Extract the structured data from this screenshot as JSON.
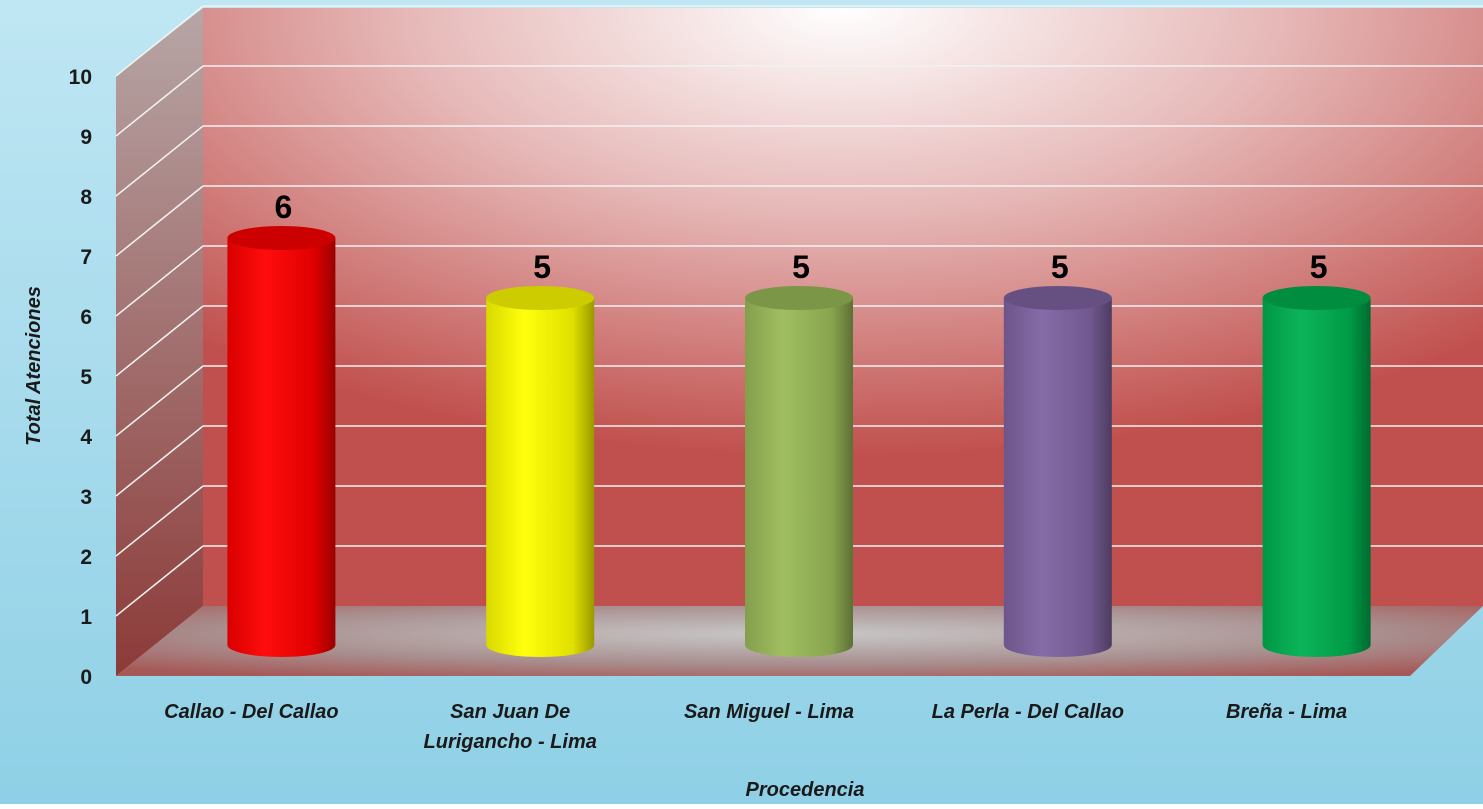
{
  "chart_data": {
    "type": "bar",
    "title": "",
    "xlabel": "Procedencia",
    "ylabel": "Total Atenciones",
    "ylim": [
      0,
      10
    ],
    "yticks": [
      0,
      1,
      2,
      3,
      4,
      5,
      6,
      7,
      8,
      9,
      10
    ],
    "grid": true,
    "bar_shape": "cylinder-3d",
    "categories": [
      [
        "Callao - Del Callao"
      ],
      [
        "San Juan De",
        "Lurigancho - Lima"
      ],
      [
        "San Miguel - Lima"
      ],
      [
        "La Perla - Del Callao"
      ],
      [
        "Breña - Lima"
      ]
    ],
    "values": [
      6,
      5,
      5,
      5,
      5
    ],
    "data_labels": [
      "6",
      "5",
      "5",
      "5",
      "5"
    ],
    "colors": [
      "#ff0000",
      "#ffff00",
      "#9bbb59",
      "#8064a2",
      "#00b050"
    ]
  },
  "style": {
    "background_top": "#bfe6f3",
    "background_bottom": "#8fd0e6",
    "wall_color": "#c0504d",
    "wall_highlight": "#ffffff",
    "gridline_color": "#f2f2f2"
  }
}
